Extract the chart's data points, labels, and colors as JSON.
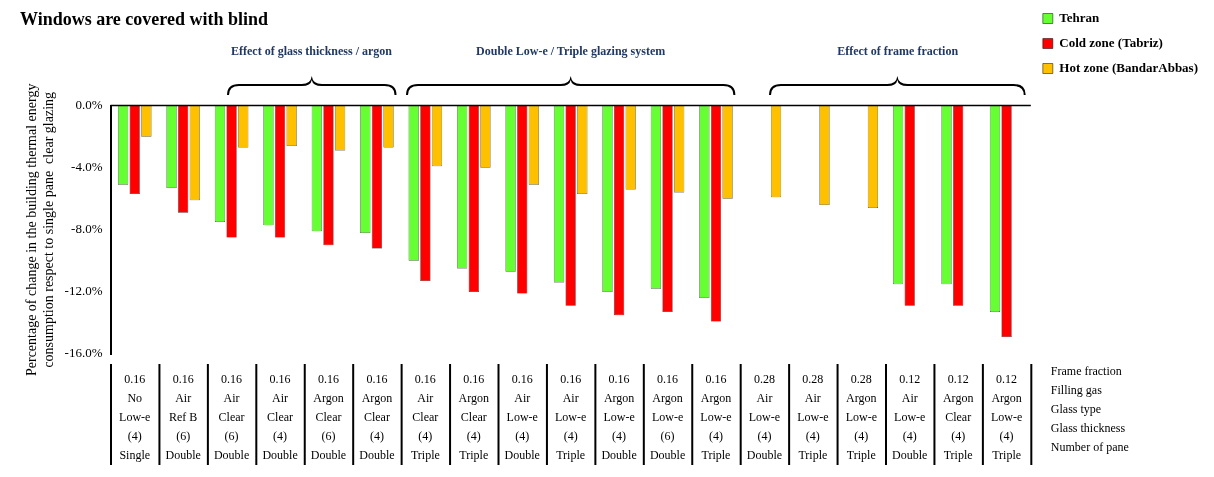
{
  "chart_data": {
    "type": "bar",
    "title": "Windows are covered with blind",
    "ylabel": "Percentage of change in the building thermal energy\nconsumption respect to single pane  clear glazing",
    "categories": [
      "0.16\nNo\nLow-e\n(4)\nSingle",
      "0.16\nAir\nRef B\n(6)\nDouble",
      "0.16\nAir\nClear\n(6)\nDouble",
      "0.16\nAir\nClear\n(4)\nDouble",
      "0.16\nArgon\nClear\n(6)\nDouble",
      "0.16\nArgon\nClear\n(4)\nDouble",
      "0.16\nAir\nClear\n(4)\nTriple",
      "0.16\nArgon\nClear\n(4)\nTriple",
      "0.16\nAir\nLow-e\n(4)\nDouble",
      "0.16\nAir\nLow-e\n(4)\nTriple",
      "0.16\nArgon\nLow-e\n(4)\nDouble",
      "0.16\nArgon\nLow-e\n(6)\nDouble",
      "0.16\nArgon\nLow-e\n(4)\nTriple",
      "0.28\nAir\nLow-e\n(4)\nDouble",
      "0.28\nAir\nLow-e\n(4)\nTriple",
      "0.28\nArgon\nLow-e\n(4)\nTriple",
      "0.12\nAir\nLow-e\n(4)\nDouble",
      "0.12\nArgon\nClear\n(4)\nTriple",
      "0.12\nArgon\nLow-e\n(4)\nTriple"
    ],
    "series": [
      {
        "name": "Tehran",
        "color": "#66ff33",
        "values": [
          -5.1,
          -5.3,
          -7.5,
          -7.7,
          -8.1,
          -8.2,
          -10.0,
          -10.5,
          -10.7,
          -11.4,
          -12.0,
          -11.8,
          -12.4,
          null,
          null,
          null,
          -11.5,
          -11.5,
          -13.3
        ]
      },
      {
        "name": "Cold zone (Tabriz)",
        "color": "#ff0000",
        "values": [
          -5.7,
          -6.9,
          -8.5,
          -8.5,
          -9.0,
          -9.2,
          -11.3,
          -12.0,
          -12.1,
          -12.9,
          -13.5,
          -13.3,
          -13.9,
          null,
          null,
          null,
          -12.9,
          -12.9,
          -14.9
        ]
      },
      {
        "name": "Hot zone (BandarAbbas)",
        "color": "#ffc000",
        "values": [
          -2.0,
          -6.1,
          -2.7,
          -2.6,
          -2.9,
          -2.7,
          -3.9,
          -4.0,
          -5.1,
          -5.7,
          -5.4,
          -5.6,
          -6.0,
          -5.9,
          -6.4,
          -6.6,
          null,
          null,
          null
        ]
      }
    ],
    "ylim": [
      -16,
      0
    ],
    "yticks": [
      {
        "value": -16,
        "label": "-16.0%"
      },
      {
        "value": -12,
        "label": "-12.0%"
      },
      {
        "value": -8,
        "label": "-8.0%"
      },
      {
        "value": -4,
        "label": "-4.0%"
      },
      {
        "value": 0,
        "label": "0.0%"
      }
    ],
    "legend": "top right",
    "annotations": [
      "Effect of  glass thickness / argon",
      "Double Low-e / Triple glazing system",
      "Effect of  frame fraction",
      "Frame fraction",
      "Filling gas",
      "Glass type",
      "Glass thickness",
      "Number of pane"
    ]
  }
}
